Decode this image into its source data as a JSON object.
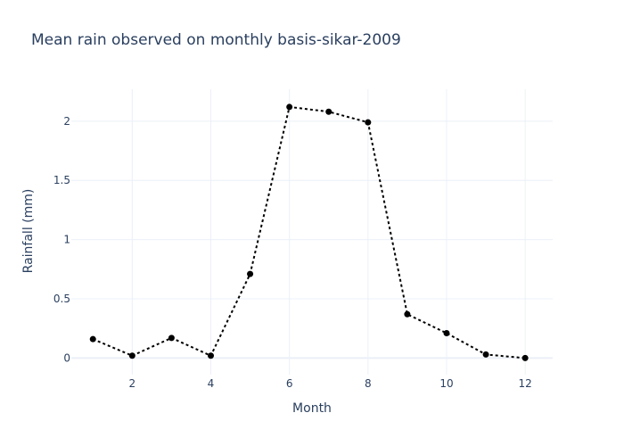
{
  "chart_data": {
    "type": "line",
    "title": "Mean rain observed on monthly basis-sikar-2009",
    "xlabel": "Month",
    "ylabel": "Rainfall (mm)",
    "x": [
      1,
      2,
      3,
      4,
      5,
      6,
      7,
      8,
      9,
      10,
      11,
      12
    ],
    "series": [
      {
        "values": [
          0.16,
          0.02,
          0.17,
          0.02,
          0.71,
          2.12,
          2.08,
          1.99,
          0.37,
          0.21,
          0.03,
          0.0
        ],
        "color": "#000000",
        "line_style": "dotted",
        "marker": "circle"
      }
    ],
    "xlim": [
      0.45,
      12.7
    ],
    "ylim": [
      -0.14,
      2.27
    ],
    "xticks": [
      2,
      4,
      6,
      8,
      10,
      12
    ],
    "xtick_labels": [
      "2",
      "4",
      "6",
      "8",
      "10",
      "12"
    ],
    "yticks": [
      0,
      0.5,
      1,
      1.5,
      2
    ],
    "ytick_labels": [
      "0",
      "0.5",
      "1",
      "1.5",
      "2"
    ],
    "grid": true,
    "legend": false,
    "colors": {
      "text": "#2a3f5f",
      "grid": "#ebf0f8",
      "background": "#ffffff"
    }
  }
}
